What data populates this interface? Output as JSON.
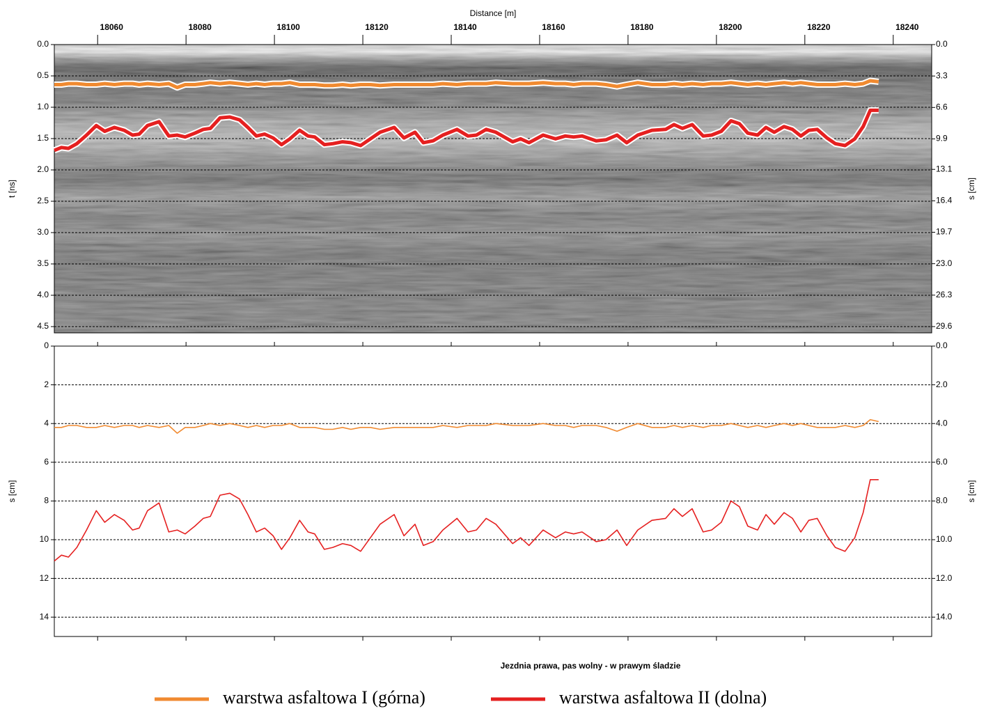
{
  "chart_data": [
    {
      "type": "radargram",
      "xlabel": "Distance [m]",
      "ylabel": "t [ns]",
      "y2label": "s [cm]",
      "xlim": [
        18050.2,
        18248.7
      ],
      "xticks": [
        18060,
        18080,
        18100,
        18120,
        18140,
        18160,
        18180,
        18200,
        18220,
        18240
      ],
      "ylim": [
        0,
        4.6
      ],
      "yticks": [
        {
          "value": 0,
          "label": "0.0"
        },
        0.5,
        {
          "value": 1,
          "label": "1.0"
        },
        1.5,
        {
          "value": 2,
          "label": "2.0"
        },
        2.5,
        {
          "value": 3,
          "label": "3.0"
        },
        3.5,
        {
          "value": 4,
          "label": "4.0"
        },
        4.5
      ],
      "y2lim": [
        0,
        30.26
      ],
      "y2ticks": [
        {
          "value": 0,
          "label": "0.0"
        },
        3.3,
        6.6,
        9.9,
        13.1,
        16.4,
        19.7,
        {
          "value": 23,
          "label": "23.0"
        },
        26.3,
        29.6
      ],
      "grid": true,
      "x": [
        18050.2,
        18051.8,
        18053.4,
        18055.3,
        18057.5,
        18059.7,
        18061.6,
        18063.8,
        18066.0,
        18067.9,
        18069.4,
        18071.3,
        18073.9,
        18076.1,
        18078.0,
        18079.8,
        18082.0,
        18083.9,
        18085.5,
        18087.7,
        18089.9,
        18092.1,
        18094.0,
        18095.9,
        18097.8,
        18099.7,
        18101.6,
        18103.5,
        18105.7,
        18107.6,
        18109.1,
        18111.3,
        18113.2,
        18115.4,
        18117.3,
        18119.5,
        18121.7,
        18123.9,
        18127.1,
        18129.3,
        18131.8,
        18133.7,
        18135.9,
        18138.1,
        18141.3,
        18143.8,
        18145.7,
        18147.9,
        18150.1,
        18153.9,
        18155.7,
        18157.6,
        18160.8,
        18163.6,
        18165.8,
        18167.7,
        18169.6,
        18172.8,
        18175.0,
        18177.5,
        18179.7,
        18182.2,
        18185.4,
        18188.5,
        18190.4,
        18192.3,
        18194.5,
        18197.0,
        18198.9,
        18201.1,
        18203.3,
        18205.2,
        18207.1,
        18209.3,
        18211.2,
        18213.1,
        18215.3,
        18217.2,
        18219.1,
        18220.9,
        18222.8,
        18225.0,
        18226.9,
        18229.1,
        18231.3,
        18233.2,
        18234.8,
        18236.7
      ],
      "series": [
        {
          "color": "#f08a30",
          "axis": "y2",
          "values": [
            4.2,
            4.2,
            4.1,
            4.1,
            4.2,
            4.2,
            4.1,
            4.2,
            4.1,
            4.1,
            4.2,
            4.1,
            4.2,
            4.1,
            4.5,
            4.2,
            4.2,
            4.1,
            4.0,
            4.1,
            4.0,
            4.1,
            4.2,
            4.1,
            4.2,
            4.1,
            4.1,
            4.0,
            4.2,
            4.2,
            4.2,
            4.3,
            4.3,
            4.2,
            4.3,
            4.2,
            4.2,
            4.3,
            4.2,
            4.2,
            4.2,
            4.2,
            4.2,
            4.1,
            4.2,
            4.1,
            4.1,
            4.1,
            4.0,
            4.1,
            4.1,
            4.1,
            4.0,
            4.1,
            4.1,
            4.2,
            4.1,
            4.1,
            4.2,
            4.4,
            4.2,
            4.0,
            4.2,
            4.2,
            4.1,
            4.2,
            4.1,
            4.2,
            4.1,
            4.1,
            4.0,
            4.1,
            4.2,
            4.1,
            4.2,
            4.1,
            4.0,
            4.1,
            4.0,
            4.1,
            4.2,
            4.2,
            4.2,
            4.1,
            4.2,
            4.1,
            3.8,
            3.9
          ]
        },
        {
          "color": "#e52020",
          "axis": "y2",
          "values": [
            11.1,
            10.8,
            10.9,
            10.4,
            9.5,
            8.5,
            9.1,
            8.7,
            9.0,
            9.5,
            9.4,
            8.5,
            8.1,
            9.6,
            9.5,
            9.7,
            9.3,
            8.9,
            8.8,
            7.7,
            7.6,
            7.9,
            8.7,
            9.6,
            9.4,
            9.8,
            10.5,
            9.9,
            9.0,
            9.6,
            9.7,
            10.5,
            10.4,
            10.2,
            10.3,
            10.6,
            9.9,
            9.2,
            8.7,
            9.8,
            9.2,
            10.3,
            10.1,
            9.5,
            8.9,
            9.6,
            9.5,
            8.9,
            9.2,
            10.2,
            9.9,
            10.3,
            9.5,
            9.9,
            9.6,
            9.7,
            9.6,
            10.1,
            10.0,
            9.5,
            10.3,
            9.5,
            9.0,
            8.9,
            8.4,
            8.8,
            8.4,
            9.6,
            9.5,
            9.1,
            8.0,
            8.3,
            9.3,
            9.5,
            8.7,
            9.2,
            8.6,
            8.9,
            9.6,
            9.0,
            8.9,
            9.8,
            10.4,
            10.6,
            9.9,
            8.6,
            6.9,
            6.9
          ]
        }
      ]
    },
    {
      "type": "line",
      "xlabel": "Jezdnia prawa, pas wolny - w prawym śladzie",
      "ylabel": "s [cm]",
      "y2label": "s [cm]",
      "xlim": [
        18050.2,
        18248.7
      ],
      "ylim": [
        0,
        15
      ],
      "yticks": [
        0,
        2,
        4,
        6,
        8,
        10,
        12,
        14
      ],
      "y2lim": [
        0,
        15
      ],
      "y2ticks": [
        {
          "value": 0,
          "label": "0.0"
        },
        {
          "value": 2,
          "label": "2.0"
        },
        {
          "value": 4,
          "label": "4.0"
        },
        {
          "value": 6,
          "label": "6.0"
        },
        {
          "value": 8,
          "label": "8.0"
        },
        {
          "value": 10,
          "label": "10.0"
        },
        {
          "value": 12,
          "label": "12.0"
        },
        {
          "value": 14,
          "label": "14.0"
        }
      ],
      "grid": true,
      "legend": "bottom",
      "x": [
        18050.2,
        18051.8,
        18053.4,
        18055.3,
        18057.5,
        18059.7,
        18061.6,
        18063.8,
        18066.0,
        18067.9,
        18069.4,
        18071.3,
        18073.9,
        18076.1,
        18078.0,
        18079.8,
        18082.0,
        18083.9,
        18085.5,
        18087.7,
        18089.9,
        18092.1,
        18094.0,
        18095.9,
        18097.8,
        18099.7,
        18101.6,
        18103.5,
        18105.7,
        18107.6,
        18109.1,
        18111.3,
        18113.2,
        18115.4,
        18117.3,
        18119.5,
        18121.7,
        18123.9,
        18127.1,
        18129.3,
        18131.8,
        18133.7,
        18135.9,
        18138.1,
        18141.3,
        18143.8,
        18145.7,
        18147.9,
        18150.1,
        18153.9,
        18155.7,
        18157.6,
        18160.8,
        18163.6,
        18165.8,
        18167.7,
        18169.6,
        18172.8,
        18175.0,
        18177.5,
        18179.7,
        18182.2,
        18185.4,
        18188.5,
        18190.4,
        18192.3,
        18194.5,
        18197.0,
        18198.9,
        18201.1,
        18203.3,
        18205.2,
        18207.1,
        18209.3,
        18211.2,
        18213.1,
        18215.3,
        18217.2,
        18219.1,
        18220.9,
        18222.8,
        18225.0,
        18226.9,
        18229.1,
        18231.3,
        18233.2,
        18234.8,
        18236.7
      ],
      "series": [
        {
          "name": "warstwa asfaltowa I (górna)",
          "color": "#f08a30",
          "values": [
            4.2,
            4.2,
            4.1,
            4.1,
            4.2,
            4.2,
            4.1,
            4.2,
            4.1,
            4.1,
            4.2,
            4.1,
            4.2,
            4.1,
            4.5,
            4.2,
            4.2,
            4.1,
            4.0,
            4.1,
            4.0,
            4.1,
            4.2,
            4.1,
            4.2,
            4.1,
            4.1,
            4.0,
            4.2,
            4.2,
            4.2,
            4.3,
            4.3,
            4.2,
            4.3,
            4.2,
            4.2,
            4.3,
            4.2,
            4.2,
            4.2,
            4.2,
            4.2,
            4.1,
            4.2,
            4.1,
            4.1,
            4.1,
            4.0,
            4.1,
            4.1,
            4.1,
            4.0,
            4.1,
            4.1,
            4.2,
            4.1,
            4.1,
            4.2,
            4.4,
            4.2,
            4.0,
            4.2,
            4.2,
            4.1,
            4.2,
            4.1,
            4.2,
            4.1,
            4.1,
            4.0,
            4.1,
            4.2,
            4.1,
            4.2,
            4.1,
            4.0,
            4.1,
            4.0,
            4.1,
            4.2,
            4.2,
            4.2,
            4.1,
            4.2,
            4.1,
            3.8,
            3.9
          ]
        },
        {
          "name": "warstwa asfaltowa II (dolna)",
          "color": "#e52020",
          "values": [
            11.1,
            10.8,
            10.9,
            10.4,
            9.5,
            8.5,
            9.1,
            8.7,
            9.0,
            9.5,
            9.4,
            8.5,
            8.1,
            9.6,
            9.5,
            9.7,
            9.3,
            8.9,
            8.8,
            7.7,
            7.6,
            7.9,
            8.7,
            9.6,
            9.4,
            9.8,
            10.5,
            9.9,
            9.0,
            9.6,
            9.7,
            10.5,
            10.4,
            10.2,
            10.3,
            10.6,
            9.9,
            9.2,
            8.7,
            9.8,
            9.2,
            10.3,
            10.1,
            9.5,
            8.9,
            9.6,
            9.5,
            8.9,
            9.2,
            10.2,
            9.9,
            10.3,
            9.5,
            9.9,
            9.6,
            9.7,
            9.6,
            10.1,
            10.0,
            9.5,
            10.3,
            9.5,
            9.0,
            8.9,
            8.4,
            8.8,
            8.4,
            9.6,
            9.5,
            9.1,
            8.0,
            8.3,
            9.3,
            9.5,
            8.7,
            9.2,
            8.6,
            8.9,
            9.6,
            9.0,
            8.9,
            9.8,
            10.4,
            10.6,
            9.9,
            8.6,
            6.9,
            6.9
          ]
        }
      ]
    }
  ]
}
